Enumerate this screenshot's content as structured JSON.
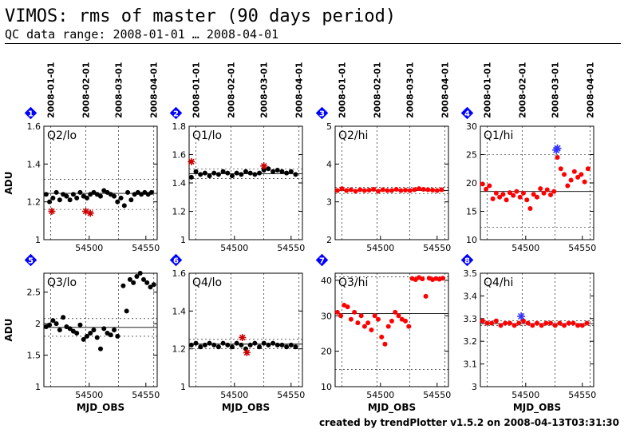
{
  "header": {
    "title": "VIMOS: rms of master (90 days period)",
    "subtitle": "QC data range: 2008-01-01 … 2008-04-01"
  },
  "footer": {
    "text": "created by trendPlotter v1.5.2 on 2008-04-13T03:31:30"
  },
  "colors": {
    "black": "#000000",
    "red": "#ff0000",
    "star_red": "#cc0000",
    "blue": "#0000ff",
    "outlier_blue": "#3333ff"
  },
  "x_axis": {
    "label": "MJD_OBS",
    "ticks": [
      54500,
      54550
    ],
    "xlim": [
      54460,
      54560
    ],
    "date_labels": [
      "2008-01-01",
      "2008-02-01",
      "2008-03-01",
      "2008-04-01"
    ],
    "date_mjd": [
      54466,
      54497,
      54526,
      54557
    ]
  },
  "chart_data": [
    {
      "type": "scatter",
      "badge": "1",
      "panel_label": "Q2/lo",
      "ylabel": "ADU",
      "ylim": [
        1,
        1.6
      ],
      "yticks": [
        1,
        1.2,
        1.4,
        1.6
      ],
      "mean": 1.245,
      "band": [
        1.16,
        1.32
      ],
      "color": "black",
      "x": [
        54462,
        54465,
        54468,
        54471,
        54474,
        54477,
        54480,
        54483,
        54486,
        54489,
        54492,
        54495,
        54498,
        54501,
        54504,
        54507,
        54510,
        54513,
        54516,
        54519,
        54522,
        54525,
        54528,
        54531,
        54534,
        54537,
        54540,
        54543,
        54546,
        54549,
        54552,
        54555
      ],
      "y": [
        1.24,
        1.2,
        1.22,
        1.25,
        1.21,
        1.24,
        1.23,
        1.21,
        1.24,
        1.22,
        1.25,
        1.23,
        1.22,
        1.24,
        1.25,
        1.24,
        1.23,
        1.26,
        1.25,
        1.24,
        1.23,
        1.2,
        1.22,
        1.18,
        1.25,
        1.21,
        1.24,
        1.25,
        1.24,
        1.25,
        1.24,
        1.25
      ],
      "flagged_x": [
        54467,
        54497,
        54501
      ],
      "flagged_y": [
        1.15,
        1.15,
        1.14
      ]
    },
    {
      "type": "scatter",
      "badge": "2",
      "panel_label": "Q1/lo",
      "ylabel": "",
      "ylim": [
        1,
        1.8
      ],
      "yticks": [
        1,
        1.2,
        1.4,
        1.6,
        1.8
      ],
      "mean": 1.465,
      "band": [
        1.43,
        1.5
      ],
      "color": "black",
      "x": [
        54462,
        54466,
        54470,
        54474,
        54478,
        54482,
        54486,
        54490,
        54494,
        54498,
        54502,
        54506,
        54510,
        54514,
        54518,
        54522,
        54526,
        54530,
        54534,
        54538,
        54542,
        54546,
        54550,
        54554
      ],
      "y": [
        1.44,
        1.48,
        1.46,
        1.47,
        1.45,
        1.47,
        1.46,
        1.48,
        1.47,
        1.45,
        1.47,
        1.46,
        1.48,
        1.47,
        1.46,
        1.47,
        1.49,
        1.5,
        1.48,
        1.49,
        1.48,
        1.47,
        1.48,
        1.46
      ],
      "flagged_x": [
        54462,
        54526
      ],
      "flagged_y": [
        1.55,
        1.52
      ]
    },
    {
      "type": "scatter",
      "badge": "3",
      "panel_label": "Q2/hi",
      "ylabel": "",
      "ylim": [
        2,
        5
      ],
      "yticks": [
        2,
        3,
        4,
        5
      ],
      "mean": 3.3,
      "band": [
        3.22,
        3.38
      ],
      "color": "red",
      "x": [
        54462,
        54466,
        54470,
        54474,
        54478,
        54482,
        54486,
        54490,
        54494,
        54498,
        54502,
        54506,
        54510,
        54514,
        54518,
        54522,
        54526,
        54530,
        54534,
        54538,
        54542,
        54546,
        54550,
        54554
      ],
      "y": [
        3.3,
        3.35,
        3.3,
        3.32,
        3.28,
        3.32,
        3.3,
        3.31,
        3.33,
        3.28,
        3.32,
        3.3,
        3.3,
        3.33,
        3.3,
        3.31,
        3.3,
        3.32,
        3.35,
        3.33,
        3.32,
        3.31,
        3.3,
        3.32
      ],
      "flagged_x": [],
      "flagged_y": []
    },
    {
      "type": "scatter",
      "badge": "4",
      "panel_label": "Q1/hi",
      "ylabel": "",
      "ylim": [
        10,
        30
      ],
      "yticks": [
        10,
        15,
        20,
        25,
        30
      ],
      "mean": 18.5,
      "band": [
        12.2,
        25
      ],
      "color": "red",
      "x": [
        54462,
        54465,
        54468,
        54471,
        54474,
        54477,
        54480,
        54483,
        54486,
        54489,
        54492,
        54495,
        54498,
        54501,
        54504,
        54507,
        54510,
        54513,
        54516,
        54519,
        54522,
        54525,
        54528,
        54531,
        54534,
        54537,
        54540,
        54543,
        54546,
        54549,
        54552,
        54555
      ],
      "y": [
        19.8,
        18.9,
        19.5,
        17.2,
        18.2,
        17.5,
        18.0,
        17.0,
        18.3,
        17.8,
        18.5,
        17.5,
        18.2,
        17.0,
        15.5,
        18.0,
        17.5,
        19.0,
        18.2,
        18.8,
        17.9,
        18.5,
        24.5,
        22.5,
        21.5,
        19.5,
        20.5,
        22.0,
        21.0,
        21.5,
        20.2,
        22.5
      ],
      "flagged_x": [],
      "flagged_y": [],
      "outlier_x": [
        54527,
        54528
      ],
      "outlier_y": [
        25.8,
        26.1
      ]
    },
    {
      "type": "scatter",
      "badge": "5",
      "panel_label": "Q3/lo",
      "ylabel": "ADU",
      "ylim": [
        1,
        2.8
      ],
      "yticks": [
        1,
        1.5,
        2,
        2.5
      ],
      "mean": 1.94,
      "band": [
        1.8,
        2.08
      ],
      "color": "black",
      "x": [
        54462,
        54465,
        54468,
        54471,
        54474,
        54477,
        54480,
        54483,
        54486,
        54489,
        54492,
        54495,
        54498,
        54501,
        54504,
        54507,
        54510,
        54513,
        54516,
        54519,
        54522,
        54525,
        54530,
        54533,
        54536,
        54539,
        54542,
        54545,
        54548,
        54551,
        54554,
        54557
      ],
      "y": [
        1.95,
        1.98,
        2.05,
        2.0,
        1.9,
        2.1,
        1.95,
        1.92,
        1.88,
        1.85,
        1.98,
        1.75,
        1.8,
        1.85,
        1.9,
        1.78,
        1.6,
        1.92,
        1.85,
        1.82,
        1.9,
        1.8,
        2.6,
        2.2,
        2.7,
        2.65,
        2.75,
        2.8,
        2.7,
        2.65,
        2.58,
        2.62
      ],
      "flagged_x": [],
      "flagged_y": []
    },
    {
      "type": "scatter",
      "badge": "6",
      "panel_label": "Q4/lo",
      "ylabel": "",
      "ylim": [
        1,
        1.6
      ],
      "yticks": [
        1,
        1.2,
        1.4,
        1.6
      ],
      "mean": 1.225,
      "band": [
        1.2,
        1.25
      ],
      "color": "black",
      "x": [
        54462,
        54466,
        54470,
        54474,
        54478,
        54482,
        54486,
        54490,
        54494,
        54498,
        54502,
        54506,
        54510,
        54514,
        54518,
        54522,
        54526,
        54530,
        54534,
        54538,
        54542,
        54546,
        54550,
        54554
      ],
      "y": [
        1.22,
        1.23,
        1.21,
        1.22,
        1.23,
        1.22,
        1.21,
        1.23,
        1.22,
        1.21,
        1.23,
        1.22,
        1.2,
        1.22,
        1.23,
        1.21,
        1.23,
        1.22,
        1.23,
        1.22,
        1.22,
        1.21,
        1.22,
        1.21
      ],
      "flagged_x": [
        54507,
        54511
      ],
      "flagged_y": [
        1.26,
        1.18
      ]
    },
    {
      "type": "scatter",
      "badge": "7",
      "panel_label": "Q3/hi",
      "ylabel": "",
      "ylim": [
        10,
        42
      ],
      "yticks": [
        10,
        20,
        30,
        40
      ],
      "mean": 30.6,
      "band": [
        14.8,
        41
      ],
      "color": "red",
      "x": [
        54462,
        54465,
        54468,
        54471,
        54474,
        54477,
        54480,
        54483,
        54486,
        54489,
        54492,
        54495,
        54498,
        54501,
        54504,
        54507,
        54510,
        54513,
        54516,
        54519,
        54522,
        54525,
        54528,
        54531,
        54534,
        54537,
        54540,
        54543,
        54546,
        54549,
        54552,
        54555
      ],
      "y": [
        31,
        30,
        33,
        32.5,
        29,
        31,
        28,
        30,
        27,
        28,
        26,
        30,
        29,
        24,
        22,
        27,
        28.5,
        31,
        30,
        29,
        28.5,
        27,
        40.5,
        40.2,
        40.8,
        40.4,
        35.5,
        40.6,
        40.2,
        40.5,
        40.3,
        40.6
      ],
      "flagged_x": [],
      "flagged_y": []
    },
    {
      "type": "scatter",
      "badge": "8",
      "panel_label": "Q4/hi",
      "ylabel": "",
      "ylim": [
        3,
        3.5
      ],
      "yticks": [
        3,
        3.1,
        3.2,
        3.3,
        3.4,
        3.5
      ],
      "mean": 3.278,
      "band": [
        3.27,
        3.29
      ],
      "color": "red",
      "x": [
        54462,
        54466,
        54470,
        54474,
        54478,
        54482,
        54486,
        54490,
        54494,
        54498,
        54502,
        54506,
        54510,
        54514,
        54518,
        54522,
        54526,
        54530,
        54534,
        54538,
        54542,
        54546,
        54550,
        54554
      ],
      "y": [
        3.29,
        3.28,
        3.28,
        3.29,
        3.27,
        3.28,
        3.28,
        3.27,
        3.28,
        3.29,
        3.28,
        3.27,
        3.28,
        3.27,
        3.28,
        3.28,
        3.27,
        3.28,
        3.27,
        3.28,
        3.28,
        3.27,
        3.27,
        3.28
      ],
      "flagged_x": [],
      "flagged_y": [],
      "outlier_x": [
        54496
      ],
      "outlier_y": [
        3.31
      ]
    }
  ]
}
